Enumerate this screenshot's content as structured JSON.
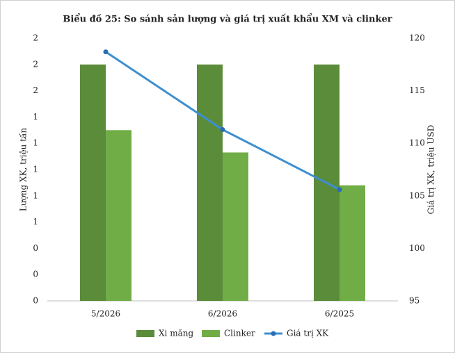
{
  "chart_data": {
    "type": "bar_line",
    "title": "Biểu đồ 25: So sánh sản lượng và giá trị xuất khẩu XM và clinker",
    "categories": [
      "5/2026",
      "6/2026",
      "6/2025"
    ],
    "series": [
      {
        "name": "Xi măng",
        "color": "#5b8c3a",
        "values": [
          1.8,
          1.8,
          1.8
        ]
      },
      {
        "name": "Clinker",
        "color": "#70ad47",
        "values": [
          1.3,
          1.13,
          0.88
        ]
      },
      {
        "name": "Giá trị XK",
        "color": "#3d8fd0",
        "axis": "y2",
        "values": [
          118.7,
          111.3,
          105.6
        ]
      }
    ],
    "ylabel": "Lượng XK, triệu tấn",
    "y2label": "Giá trị XK, triệu USD",
    "ylim": [
      0,
      2
    ],
    "yticks": [
      {
        "value": 0,
        "label": "0"
      },
      {
        "value": 0.2,
        "label": "0"
      },
      {
        "value": 0.4,
        "label": "0"
      },
      {
        "value": 0.6,
        "label": "1"
      },
      {
        "value": 0.8,
        "label": "1"
      },
      {
        "value": 1,
        "label": "1"
      },
      {
        "value": 1.2,
        "label": "1"
      },
      {
        "value": 1.4,
        "label": "1"
      },
      {
        "value": 1.6,
        "label": "2"
      },
      {
        "value": 1.8,
        "label": "2"
      },
      {
        "value": 2,
        "label": "2"
      }
    ],
    "y2lim": [
      95,
      120
    ],
    "y2ticks": [
      95,
      100,
      105,
      110,
      115,
      120
    ],
    "grid": false,
    "legend": "bottom"
  }
}
